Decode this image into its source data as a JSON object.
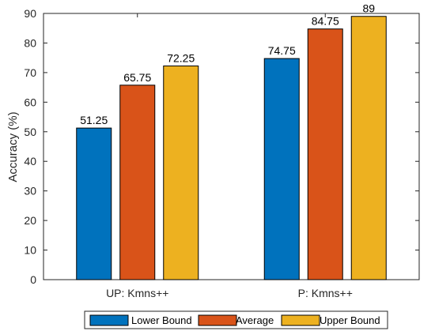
{
  "chart_data": {
    "type": "bar",
    "categories": [
      "UP: Kmns++",
      "P: Kmns++"
    ],
    "series": [
      {
        "name": "Lower Bound",
        "values": [
          51.25,
          74.75
        ],
        "color": "#0072BD"
      },
      {
        "name": "Average",
        "values": [
          65.75,
          84.75
        ],
        "color": "#D95319"
      },
      {
        "name": "Upper Bound",
        "values": [
          72.25,
          89
        ],
        "color": "#EDB120"
      }
    ],
    "data_labels": [
      [
        "51.25",
        "74.75"
      ],
      [
        "65.75",
        "84.75"
      ],
      [
        "72.25",
        "89"
      ]
    ],
    "title": "",
    "xlabel": "",
    "ylabel": "Accuracy (%)",
    "ylim": [
      0,
      90
    ],
    "yticks": [
      0,
      10,
      20,
      30,
      40,
      50,
      60,
      70,
      80,
      90
    ],
    "grid": false,
    "legend_position": "bottom"
  }
}
